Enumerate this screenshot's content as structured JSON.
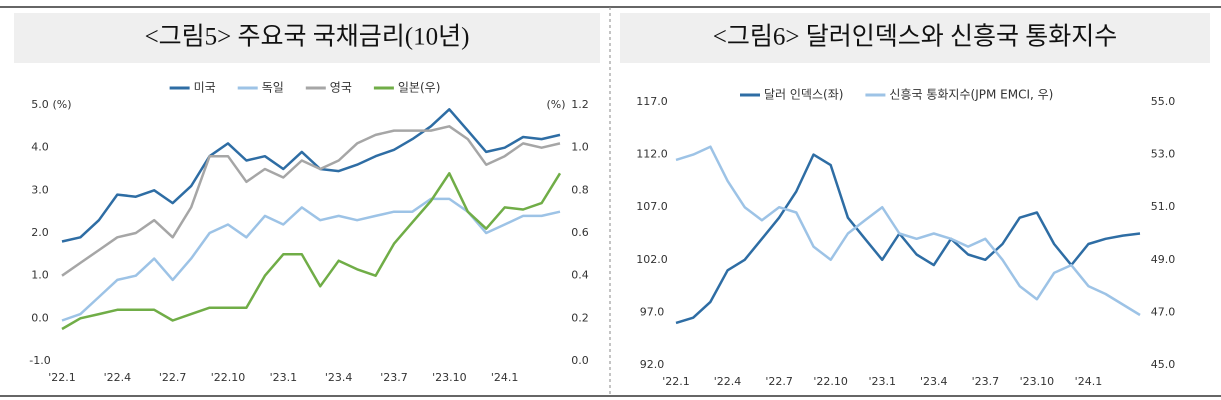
{
  "chart_data": [
    {
      "type": "line",
      "title": "<그림5> 주요국 국채금리(10년)",
      "y_unit": "(%)",
      "y2_unit": "(%)",
      "categories": [
        "'22.1",
        null,
        null,
        "'22.4",
        null,
        null,
        "'22.7",
        null,
        null,
        "'22.10",
        null,
        null,
        "'23.1",
        null,
        null,
        "'23.4",
        null,
        null,
        "'23.7",
        null,
        null,
        "'23.10",
        null,
        null,
        "'24.1",
        null,
        null,
        null
      ],
      "ylim": [
        -1,
        5
      ],
      "yticks": [
        {
          "value": -1,
          "label": "-1.0"
        },
        {
          "value": 0,
          "label": "0.0"
        },
        {
          "value": 1,
          "label": "1.0"
        },
        {
          "value": 2,
          "label": "2.0"
        },
        {
          "value": 3,
          "label": "3.0"
        },
        {
          "value": 4,
          "label": "4.0"
        },
        {
          "value": 5,
          "label": "5.0"
        }
      ],
      "y2lim": [
        0,
        1.2
      ],
      "y2ticks": [
        {
          "value": 0,
          "label": "0.0"
        },
        {
          "value": 0.2,
          "label": "0.2"
        },
        {
          "value": 0.4,
          "label": "0.4"
        },
        {
          "value": 0.6,
          "label": "0.6"
        },
        {
          "value": 0.8,
          "label": "0.8"
        },
        {
          "value": 1,
          "label": "1.0"
        },
        {
          "value": 1.2,
          "label": "1.2"
        }
      ],
      "series": [
        {
          "name": "미국",
          "color": "#2e6da4",
          "values": [
            1.8,
            1.9,
            2.3,
            2.9,
            2.85,
            3.0,
            2.7,
            3.1,
            3.8,
            4.1,
            3.7,
            3.8,
            3.5,
            3.9,
            3.5,
            3.45,
            3.6,
            3.8,
            3.95,
            4.2,
            4.5,
            4.9,
            4.4,
            3.9,
            4.0,
            4.25,
            4.2,
            4.3
          ]
        },
        {
          "name": "독일",
          "color": "#9dc3e6",
          "values": [
            -0.05,
            0.1,
            0.5,
            0.9,
            1.0,
            1.4,
            0.9,
            1.4,
            2.0,
            2.2,
            1.9,
            2.4,
            2.2,
            2.6,
            2.3,
            2.4,
            2.3,
            2.4,
            2.5,
            2.5,
            2.8,
            2.8,
            2.5,
            2.0,
            2.2,
            2.4,
            2.4,
            2.5
          ]
        },
        {
          "name": "영국",
          "color": "#a6a6a6",
          "values": [
            1.0,
            1.3,
            1.6,
            1.9,
            2.0,
            2.3,
            1.9,
            2.6,
            3.8,
            3.8,
            3.2,
            3.5,
            3.3,
            3.7,
            3.5,
            3.7,
            4.1,
            4.3,
            4.4,
            4.4,
            4.4,
            4.5,
            4.2,
            3.6,
            3.8,
            4.1,
            4.0,
            4.1
          ]
        },
        {
          "name": "일본(우)",
          "color": "#70ad47",
          "axis": "y2",
          "values": [
            0.15,
            0.2,
            0.22,
            0.24,
            0.24,
            0.24,
            0.19,
            0.22,
            0.25,
            0.25,
            0.25,
            0.4,
            0.5,
            0.5,
            0.35,
            0.47,
            0.43,
            0.4,
            0.55,
            0.65,
            0.75,
            0.88,
            0.7,
            0.62,
            0.72,
            0.71,
            0.74,
            0.88
          ]
        }
      ]
    },
    {
      "type": "line",
      "title": "<그림6> 달러인덱스와 신흥국 통화지수",
      "categories": [
        "'22.1",
        null,
        null,
        "'22.4",
        null,
        null,
        "'22.7",
        null,
        null,
        "'22.10",
        null,
        null,
        "'23.1",
        null,
        null,
        "'23.4",
        null,
        null,
        "'23.7",
        null,
        null,
        "'23.10",
        null,
        null,
        "'24.1",
        null,
        null,
        null
      ],
      "ylim": [
        92,
        117
      ],
      "yticks": [
        {
          "value": 92,
          "label": "92.0"
        },
        {
          "value": 97,
          "label": "97.0"
        },
        {
          "value": 102,
          "label": "102.0"
        },
        {
          "value": 107,
          "label": "107.0"
        },
        {
          "value": 112,
          "label": "112.0"
        },
        {
          "value": 117,
          "label": "117.0"
        }
      ],
      "y2lim": [
        45,
        55
      ],
      "y2ticks": [
        {
          "value": 45,
          "label": "45.0"
        },
        {
          "value": 47,
          "label": "47.0"
        },
        {
          "value": 49,
          "label": "49.0"
        },
        {
          "value": 51,
          "label": "51.0"
        },
        {
          "value": 53,
          "label": "53.0"
        },
        {
          "value": 55,
          "label": "55.0"
        }
      ],
      "series": [
        {
          "name": "달러 인덱스(좌)",
          "color": "#2e6da4",
          "values": [
            96,
            96.5,
            98,
            101,
            102,
            104,
            106,
            108.5,
            112,
            111,
            106,
            104,
            102,
            104.5,
            102.5,
            101.5,
            104,
            102.5,
            102,
            103.5,
            106,
            106.5,
            103.5,
            101.5,
            103.5,
            104,
            104.3,
            104.5
          ]
        },
        {
          "name": "신흥국 통화지수(JPM EMCI, 우)",
          "color": "#9dc3e6",
          "axis": "y2",
          "values": [
            52.8,
            53,
            53.3,
            52,
            51,
            50.5,
            51,
            50.8,
            49.5,
            49,
            50,
            50.5,
            51,
            50,
            49.8,
            50,
            49.8,
            49.5,
            49.8,
            49,
            48,
            47.5,
            48.5,
            48.8,
            48,
            47.7,
            47.3,
            46.9
          ]
        }
      ]
    }
  ]
}
